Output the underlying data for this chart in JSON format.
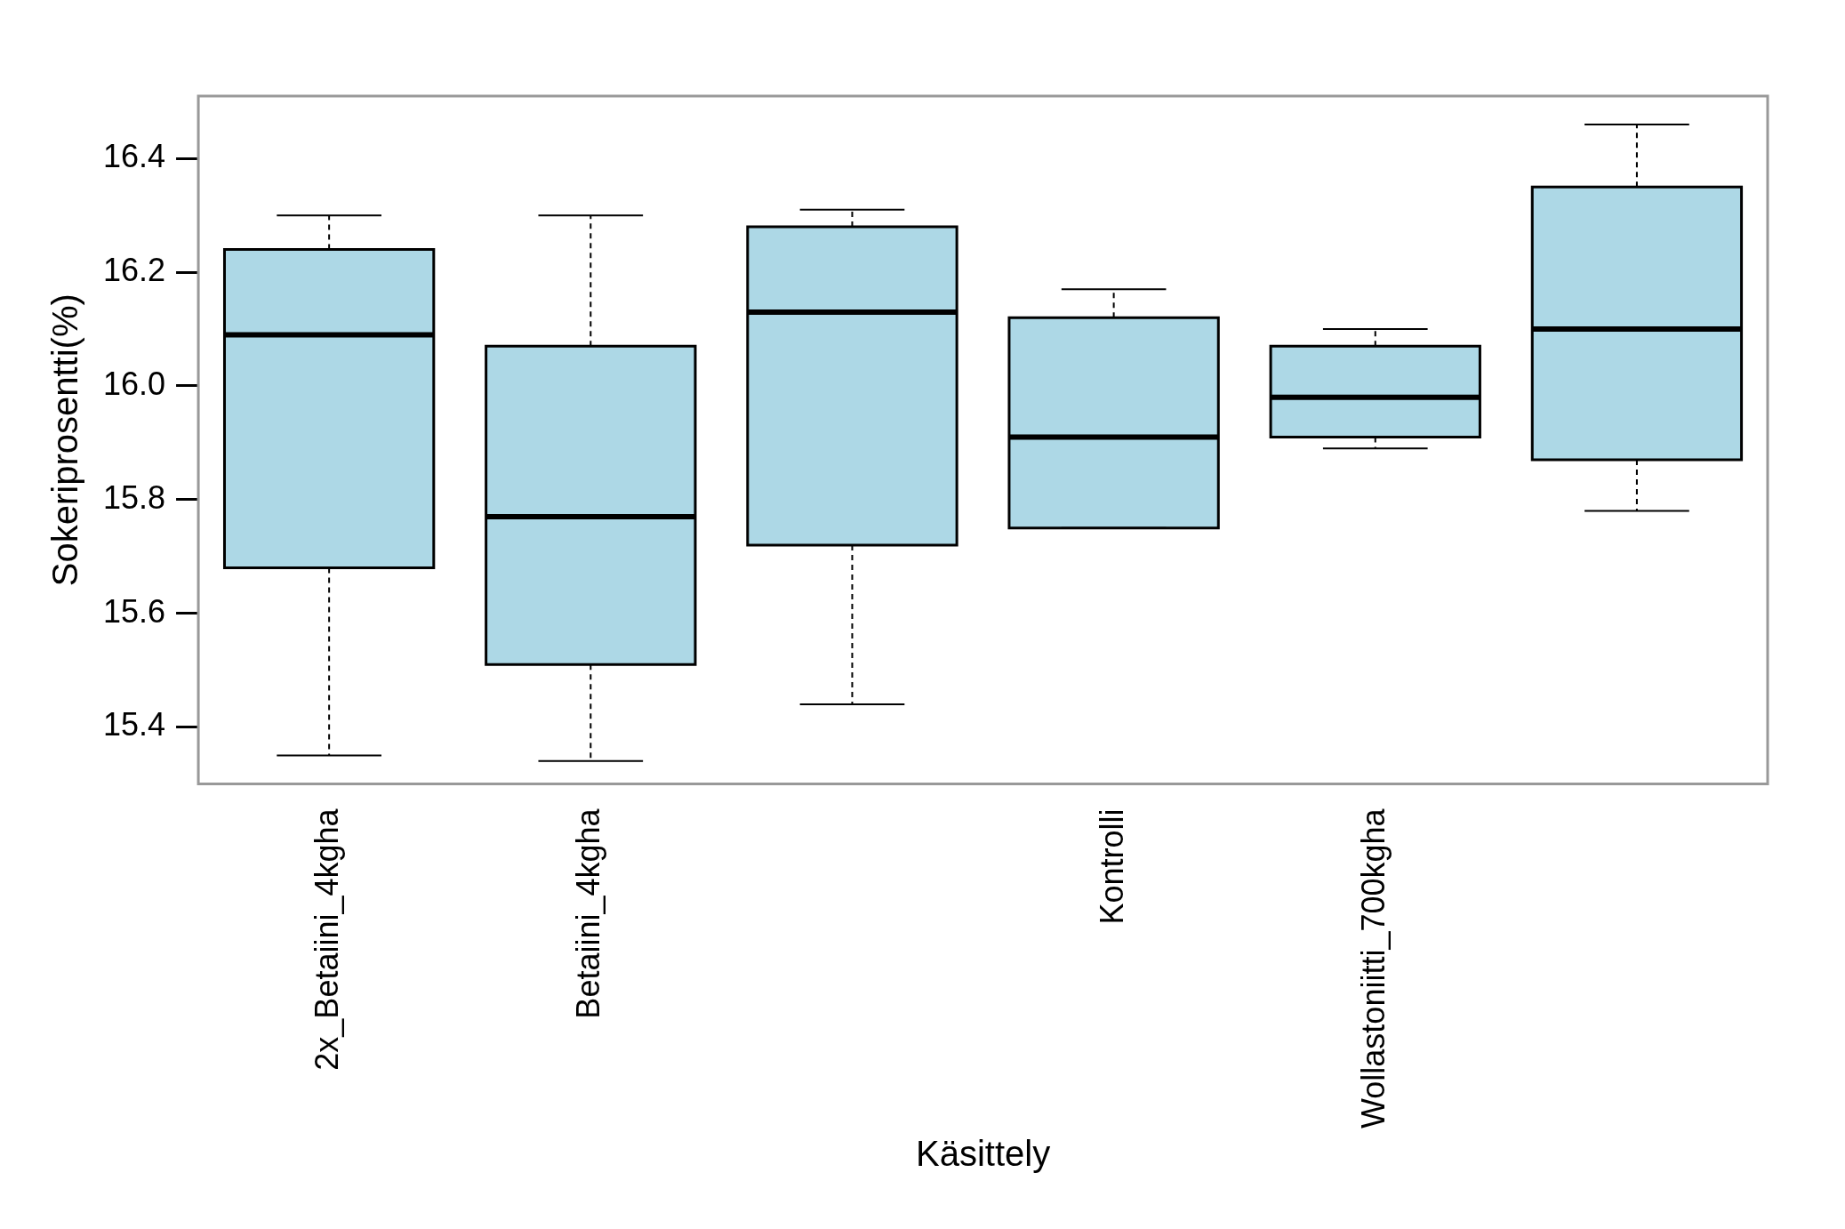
{
  "chart_data": {
    "type": "box",
    "xlabel": "Käsittely",
    "ylabel": "Sokeriprosentti(%)",
    "categories": [
      "2x_Betaiini_4kgha",
      "Betaiini_4kgha",
      null,
      "Kontrolli",
      "Wollastoniitti_700kgha",
      null
    ],
    "color": "#add8e6",
    "boxes": [
      {
        "low": 15.35,
        "q1": 15.68,
        "median": 16.09,
        "q3": 16.24,
        "high": 16.3
      },
      {
        "low": 15.34,
        "q1": 15.51,
        "median": 15.77,
        "q3": 16.07,
        "high": 16.3
      },
      {
        "low": 15.44,
        "q1": 15.72,
        "median": 16.13,
        "q3": 16.28,
        "high": 16.31
      },
      {
        "low": 15.75,
        "q1": 15.75,
        "median": 15.91,
        "q3": 16.12,
        "high": 16.17
      },
      {
        "low": 15.89,
        "q1": 15.91,
        "median": 15.98,
        "q3": 16.07,
        "high": 16.1
      },
      {
        "low": 15.78,
        "q1": 15.87,
        "median": 16.1,
        "q3": 16.35,
        "high": 16.46
      }
    ],
    "ylim": [
      15.3,
      16.51
    ],
    "yticks": [
      {
        "value": 15.4,
        "label": "15.4"
      },
      {
        "value": 15.6,
        "label": "15.6"
      },
      {
        "value": 15.8,
        "label": "15.8"
      },
      {
        "value": 16,
        "label": "16.0"
      },
      {
        "value": 16.2,
        "label": "16.2"
      },
      {
        "value": 16.4,
        "label": "16.4"
      }
    ],
    "grid": false,
    "legend": false
  }
}
